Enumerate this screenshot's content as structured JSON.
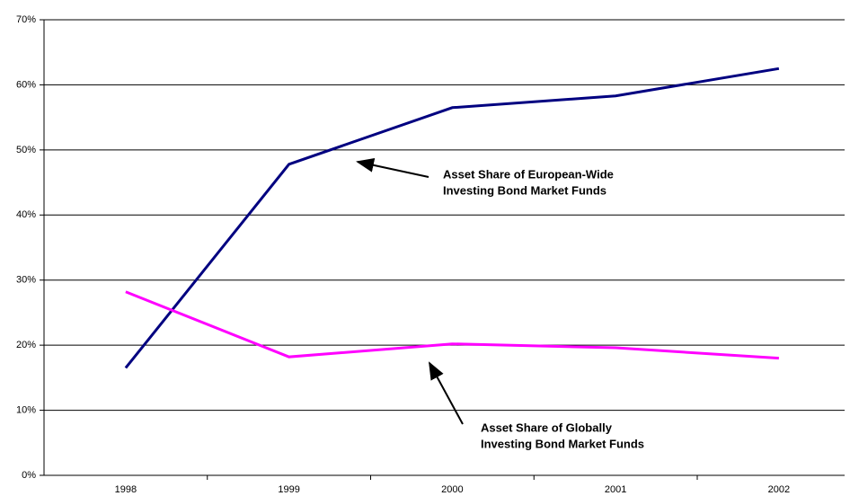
{
  "chart_data": {
    "type": "line",
    "categories": [
      "1998",
      "1999",
      "2000",
      "2001",
      "2002"
    ],
    "series": [
      {
        "color": "#000080",
        "values": [
          16.5,
          47.8,
          56.5,
          58.3,
          62.5
        ]
      },
      {
        "color": "#ff00ff",
        "values": [
          28.2,
          18.2,
          20.2,
          19.6,
          18.0
        ]
      }
    ],
    "ylim": [
      0,
      70
    ],
    "yticks": [
      {
        "value": 0,
        "label": "0%"
      },
      {
        "value": 10,
        "label": "10%"
      },
      {
        "value": 20,
        "label": "20%"
      },
      {
        "value": 30,
        "label": "30%"
      },
      {
        "value": 40,
        "label": "40%"
      },
      {
        "value": 50,
        "label": "50%"
      },
      {
        "value": 60,
        "label": "60%"
      },
      {
        "value": 70,
        "label": "70%"
      }
    ],
    "grid": true,
    "annotations": [
      {
        "lines": [
          "Asset Share of European-Wide",
          "Investing Bond Market Funds"
        ]
      },
      {
        "lines": [
          "Asset Share of Globally",
          "Investing Bond Market Funds"
        ]
      }
    ]
  }
}
